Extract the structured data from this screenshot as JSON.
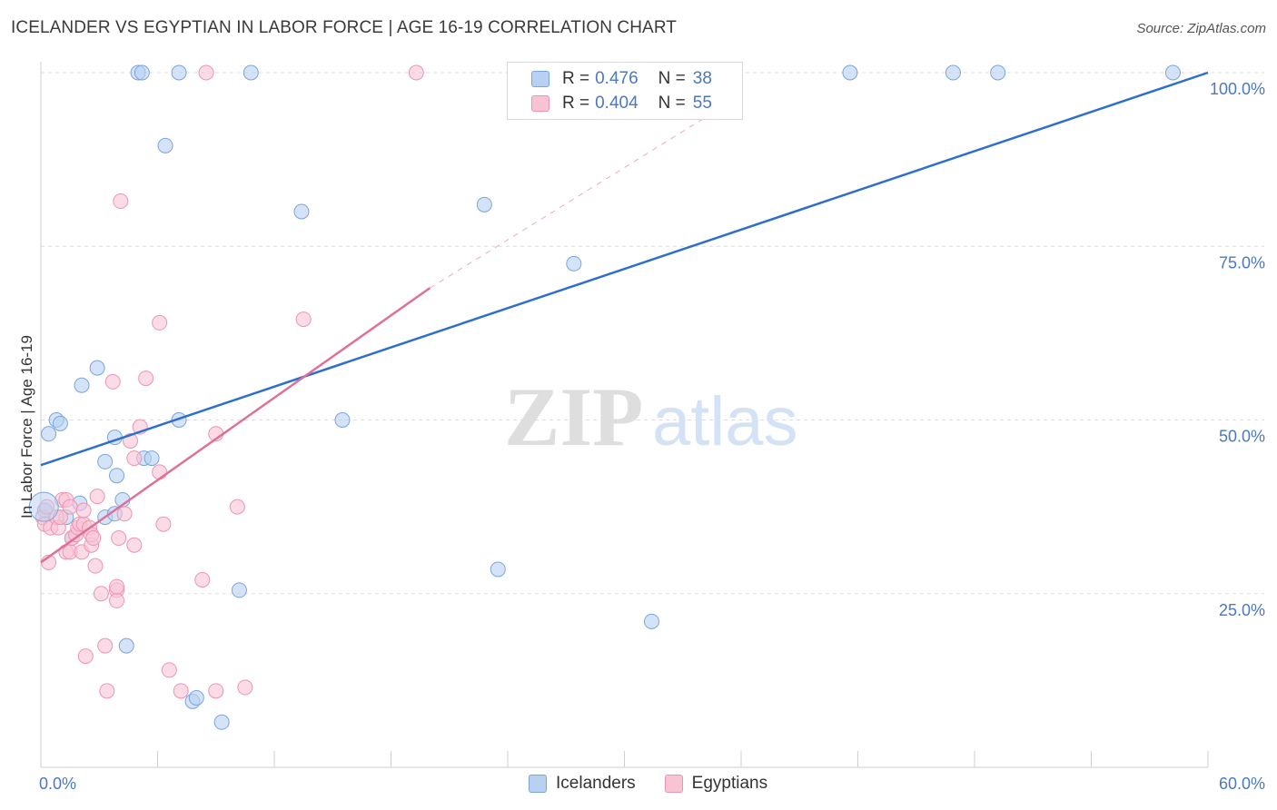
{
  "colors": {
    "blue_fill": "#b8d0f2",
    "blue_stroke": "#7aa5dc",
    "blue_line": "#2f6fcc",
    "pink_fill": "#f8c3d3",
    "pink_stroke": "#ee94b2",
    "pink_line": "#e0709a",
    "axis_label": "#4a78c2",
    "grid": "#dcdcdc"
  },
  "chart_data": {
    "type": "scatter",
    "title": "ICELANDER VS EGYPTIAN IN LABOR FORCE | AGE 16-19 CORRELATION CHART",
    "source": "Source: ZipAtlas.com",
    "xlabel": "",
    "ylabel": "In Labor Force | Age 16-19",
    "xlim": [
      0,
      60
    ],
    "ylim": [
      0,
      100
    ],
    "x_tick_labels": [
      "0.0%",
      "60.0%"
    ],
    "y_ticks": [
      25,
      50,
      75,
      100
    ],
    "y_tick_labels": [
      "25.0%",
      "50.0%",
      "75.0%",
      "100.0%"
    ],
    "grid": true,
    "watermark": "ZIPatlas",
    "legend": [
      {
        "name": "Icelanders",
        "r_label": "R =",
        "r": "0.476",
        "n_label": "N =",
        "n": "38"
      },
      {
        "name": "Egyptians",
        "r_label": "R =",
        "r": "0.404",
        "n_label": "N =",
        "n": "55"
      }
    ],
    "series": [
      {
        "name": "Icelanders",
        "points": [
          [
            0.2,
            37
          ],
          [
            0.4,
            48
          ],
          [
            0.8,
            50
          ],
          [
            1.0,
            49.5
          ],
          [
            1.3,
            36
          ],
          [
            1.6,
            33
          ],
          [
            2.0,
            38
          ],
          [
            2.1,
            55
          ],
          [
            2.9,
            57.5
          ],
          [
            3.3,
            44
          ],
          [
            3.3,
            36
          ],
          [
            3.8,
            47.5
          ],
          [
            3.8,
            36.5
          ],
          [
            3.9,
            42
          ],
          [
            4.2,
            38.5
          ],
          [
            4.4,
            17.5
          ],
          [
            5.0,
            100
          ],
          [
            5.2,
            100
          ],
          [
            5.3,
            44.5
          ],
          [
            5.7,
            44.5
          ],
          [
            6.4,
            89.5
          ],
          [
            7.1,
            100
          ],
          [
            7.1,
            50
          ],
          [
            7.8,
            9.5
          ],
          [
            8.0,
            10
          ],
          [
            9.3,
            6.5
          ],
          [
            10.2,
            25.5
          ],
          [
            10.8,
            100
          ],
          [
            13.4,
            80
          ],
          [
            15.5,
            50
          ],
          [
            22.8,
            81
          ],
          [
            23.5,
            28.5
          ],
          [
            27.4,
            72.5
          ],
          [
            31.4,
            21
          ],
          [
            41.6,
            100
          ],
          [
            46.9,
            100
          ],
          [
            49.2,
            100
          ],
          [
            58.2,
            100
          ]
        ],
        "trend": {
          "x": [
            0,
            60
          ],
          "y": [
            43.5,
            100
          ]
        }
      },
      {
        "name": "Egyptians",
        "points": [
          [
            0.1,
            36
          ],
          [
            0.2,
            35
          ],
          [
            0.3,
            37.5
          ],
          [
            0.4,
            29.5
          ],
          [
            0.5,
            34.5
          ],
          [
            0.8,
            36
          ],
          [
            0.9,
            34.5
          ],
          [
            1.0,
            36
          ],
          [
            1.1,
            38.5
          ],
          [
            1.3,
            38.5
          ],
          [
            1.3,
            31
          ],
          [
            1.5,
            31
          ],
          [
            1.5,
            37.5
          ],
          [
            1.6,
            33
          ],
          [
            1.8,
            33.5
          ],
          [
            1.9,
            34.5
          ],
          [
            2.0,
            35
          ],
          [
            2.1,
            31
          ],
          [
            2.2,
            35
          ],
          [
            2.2,
            37
          ],
          [
            2.3,
            16
          ],
          [
            2.5,
            34.5
          ],
          [
            2.6,
            32
          ],
          [
            2.6,
            33.5
          ],
          [
            2.7,
            33
          ],
          [
            2.8,
            29
          ],
          [
            2.9,
            39
          ],
          [
            3.1,
            25
          ],
          [
            3.3,
            17.5
          ],
          [
            3.4,
            11
          ],
          [
            3.7,
            55.5
          ],
          [
            3.9,
            25.5
          ],
          [
            3.9,
            24
          ],
          [
            3.9,
            26
          ],
          [
            4.0,
            33
          ],
          [
            4.1,
            81.5
          ],
          [
            4.3,
            36.5
          ],
          [
            4.6,
            47
          ],
          [
            4.8,
            32
          ],
          [
            4.8,
            44.5
          ],
          [
            5.1,
            49
          ],
          [
            5.4,
            56
          ],
          [
            6.1,
            64
          ],
          [
            6.1,
            42.5
          ],
          [
            6.3,
            35
          ],
          [
            6.6,
            14
          ],
          [
            7.2,
            11
          ],
          [
            8.3,
            27
          ],
          [
            8.5,
            100
          ],
          [
            9.0,
            11
          ],
          [
            9.0,
            48
          ],
          [
            10.1,
            37.5
          ],
          [
            10.5,
            11.5
          ],
          [
            13.5,
            64.5
          ],
          [
            19.3,
            100
          ]
        ],
        "trend": {
          "x": [
            0,
            20
          ],
          "y": [
            29.5,
            69
          ]
        },
        "trend_dashed": {
          "x": [
            20,
            35
          ],
          "y": [
            69,
            95
          ]
        }
      }
    ]
  }
}
